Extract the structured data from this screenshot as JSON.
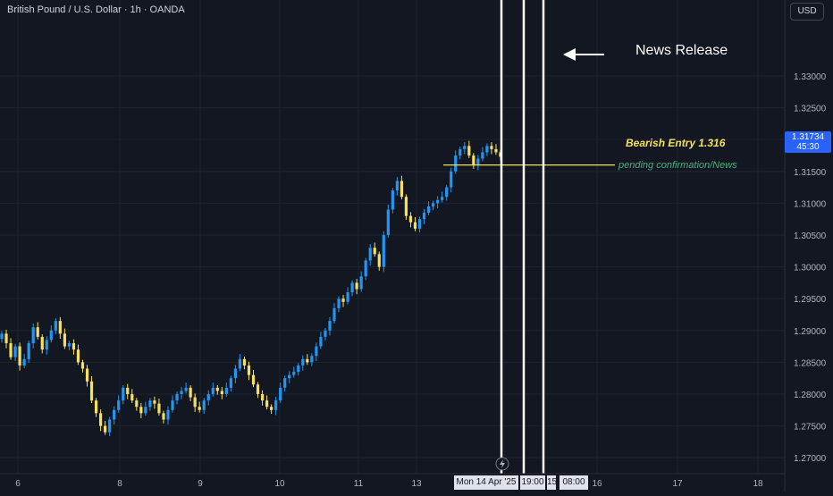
{
  "header": {
    "symbol": "British Pound / U.S. Dollar · 1h · OANDA",
    "currency_button": "USD"
  },
  "colors": {
    "background": "#131722",
    "grid": "#1f2330",
    "up_candle": "#2196f3",
    "down_candle": "#f6e05e",
    "entry_line": "#f6e05e",
    "vertical_lines": "#ffffff",
    "current_price_tag": "#2962ff",
    "pending_text": "#4caf7d"
  },
  "price_tag": {
    "price": "1.31734",
    "countdown": "45:30"
  },
  "annotations": {
    "news_release": "News Release",
    "bearish_entry": "Bearish Entry 1.316",
    "pending": "pending confirmation/News",
    "arrow_icon": "left-arrow-icon",
    "entry_price": 1.316
  },
  "time_badges": {
    "date": "Mon 14 Apr '25",
    "time1": "19:00",
    "partial": "15",
    "time2": "08:00"
  },
  "chart_data": {
    "type": "candlestick",
    "title": "British Pound / U.S. Dollar · 1h · OANDA",
    "ylim": [
      1.2675,
      1.338
    ],
    "y_ticks": [
      "1.27000",
      "1.27500",
      "1.28000",
      "1.28500",
      "1.29000",
      "1.29500",
      "1.30000",
      "1.30500",
      "1.31000",
      "1.31500",
      "1.32000",
      "1.32500",
      "1.33000"
    ],
    "x_ticks": [
      "6",
      "8",
      "9",
      "10",
      "11",
      "13",
      "16",
      "17",
      "18"
    ],
    "grid": true,
    "series": [
      {
        "closes": [
          1.2895,
          1.288,
          1.2858,
          1.2875,
          1.2845,
          1.2855,
          1.288,
          1.2905,
          1.289,
          1.287,
          1.2885,
          1.29,
          1.2915,
          1.2895,
          1.2875,
          1.288,
          1.287,
          1.285,
          1.284,
          1.282,
          1.279,
          1.277,
          1.275,
          1.274,
          1.276,
          1.2775,
          1.279,
          1.281,
          1.28,
          1.279,
          1.278,
          1.277,
          1.278,
          1.279,
          1.2785,
          1.277,
          1.276,
          1.2775,
          1.279,
          1.28,
          1.2805,
          1.281,
          1.2795,
          1.278,
          1.2775,
          1.279,
          1.28,
          1.281,
          1.2805,
          1.28,
          1.281,
          1.2825,
          1.284,
          1.2855,
          1.2845,
          1.283,
          1.2815,
          1.28,
          1.279,
          1.278,
          1.2775,
          1.279,
          1.281,
          1.2825,
          1.283,
          1.2835,
          1.2845,
          1.2855,
          1.285,
          1.286,
          1.2875,
          1.289,
          1.29,
          1.2915,
          1.2935,
          1.295,
          1.2945,
          1.296,
          1.2975,
          1.2965,
          1.2985,
          1.301,
          1.303,
          1.302,
          1.3,
          1.305,
          1.309,
          1.312,
          1.3135,
          1.311,
          1.308,
          1.307,
          1.306,
          1.3075,
          1.3085,
          1.3095,
          1.31,
          1.3105,
          1.311,
          1.3125,
          1.315,
          1.3175,
          1.3185,
          1.319,
          1.3175,
          1.316,
          1.317,
          1.318,
          1.319,
          1.3185,
          1.318,
          1.3173
        ]
      }
    ]
  }
}
